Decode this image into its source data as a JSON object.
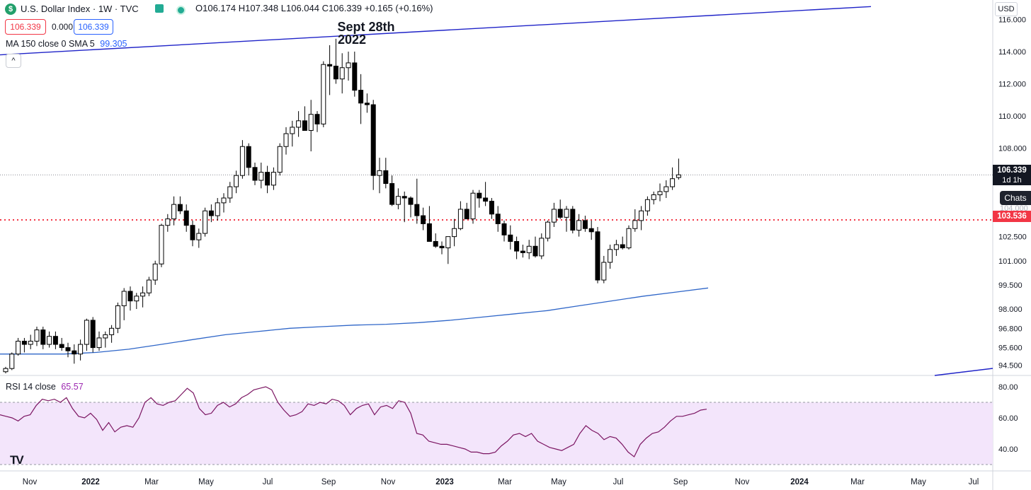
{
  "header": {
    "symbol_title": "U.S. Dollar Index · 1W · TVC",
    "ohlc": {
      "open": "O106.174",
      "high": "H107.348",
      "low": "L106.044",
      "close": "C106.339",
      "change": "+0.165 (+0.16%)"
    },
    "bid": "106.339",
    "spread": "0.000",
    "ask": "106.339",
    "ma_label": "MA 150 close 0 SMA 5",
    "ma_value": "99.305",
    "currency": "USD",
    "logo_glyph": "$",
    "collapse_glyph": "^"
  },
  "annotation": {
    "line1": "Sept 28th",
    "line2": "2022"
  },
  "price_tags": {
    "last": "106.339",
    "countdown": "1d 1h",
    "horizontal_level": "103.536",
    "chats": "Chats",
    "obscured_axis_label": "104.000"
  },
  "rsi": {
    "label": "RSI 14 close",
    "value": "65.57"
  },
  "colors": {
    "rsi_value": "#9c27b0",
    "ma_value": "#2962ff",
    "bid_box": "#f23645",
    "ask_box": "#2962ff",
    "up_body": "#ffffff",
    "down_body": "#000000",
    "trendline": "#1f23c8",
    "ma_line": "#2f66c8",
    "level_line": "#f23645",
    "rsi_line": "#7b1562",
    "rsi_band": "#f3e5fb"
  },
  "logo": "TV",
  "chart_data": {
    "type": "candlestick",
    "timeframe": "1W",
    "price_axis": {
      "min": 94.0,
      "max": 116.8,
      "ticks": [
        "116.000",
        "114.000",
        "112.000",
        "110.000",
        "108.000",
        "104.000",
        "102.500",
        "101.000",
        "99.500",
        "98.000",
        "96.800",
        "95.600",
        "94.500"
      ]
    },
    "x_axis": {
      "labels": [
        "Nov",
        "2022",
        "Mar",
        "May",
        "Jul",
        "Sep",
        "Nov",
        "2023",
        "Mar",
        "May",
        "Jul",
        "Sep",
        "Nov",
        "2024",
        "Mar",
        "May",
        "Jul"
      ],
      "bold": [
        "2022",
        "2023",
        "2024"
      ]
    },
    "candles": [
      [
        94.1,
        94.4,
        94.0,
        94.3
      ],
      [
        94.3,
        95.3,
        94.2,
        95.2
      ],
      [
        95.2,
        96.2,
        95.1,
        96.0
      ],
      [
        96.0,
        96.2,
        95.3,
        95.8
      ],
      [
        95.8,
        96.4,
        95.5,
        96.0
      ],
      [
        96.0,
        96.9,
        95.7,
        96.7
      ],
      [
        96.7,
        96.9,
        95.5,
        95.8
      ],
      [
        95.8,
        96.6,
        95.6,
        96.3
      ],
      [
        96.3,
        96.6,
        95.5,
        95.8
      ],
      [
        95.8,
        96.2,
        95.4,
        95.6
      ],
      [
        95.6,
        95.9,
        95.0,
        95.4
      ],
      [
        95.4,
        95.8,
        94.6,
        95.2
      ],
      [
        95.2,
        96.1,
        94.8,
        95.8
      ],
      [
        95.8,
        97.4,
        95.4,
        97.3
      ],
      [
        97.3,
        97.5,
        95.3,
        95.6
      ],
      [
        95.6,
        96.6,
        95.4,
        96.2
      ],
      [
        96.2,
        96.6,
        95.6,
        96.4
      ],
      [
        96.4,
        97.0,
        95.9,
        96.8
      ],
      [
        96.8,
        98.4,
        96.5,
        98.2
      ],
      [
        98.2,
        99.3,
        97.3,
        99.1
      ],
      [
        99.1,
        99.4,
        97.9,
        98.5
      ],
      [
        98.5,
        99.0,
        98.0,
        98.8
      ],
      [
        98.8,
        99.4,
        98.1,
        99.0
      ],
      [
        99.0,
        100.0,
        98.8,
        99.8
      ],
      [
        99.8,
        101.0,
        99.5,
        100.8
      ],
      [
        100.8,
        103.3,
        100.6,
        103.2
      ],
      [
        103.2,
        103.9,
        102.8,
        103.6
      ],
      [
        103.6,
        105.0,
        103.2,
        104.5
      ],
      [
        104.5,
        105.0,
        103.9,
        104.1
      ],
      [
        104.1,
        104.5,
        102.8,
        103.2
      ],
      [
        103.2,
        103.5,
        101.9,
        102.3
      ],
      [
        102.3,
        103.0,
        101.8,
        102.7
      ],
      [
        102.7,
        104.3,
        102.5,
        104.1
      ],
      [
        104.1,
        104.5,
        103.4,
        103.8
      ],
      [
        103.8,
        104.9,
        103.5,
        104.6
      ],
      [
        104.6,
        105.2,
        104.0,
        104.9
      ],
      [
        104.9,
        105.9,
        104.6,
        105.6
      ],
      [
        105.6,
        106.6,
        105.2,
        106.3
      ],
      [
        106.3,
        108.5,
        106.1,
        108.1
      ],
      [
        108.1,
        108.3,
        106.3,
        106.8
      ],
      [
        106.8,
        107.1,
        105.7,
        106.0
      ],
      [
        106.0,
        107.1,
        105.5,
        106.5
      ],
      [
        106.5,
        106.9,
        105.2,
        105.7
      ],
      [
        105.7,
        106.8,
        105.4,
        106.5
      ],
      [
        106.5,
        108.3,
        106.3,
        108.1
      ],
      [
        108.1,
        109.3,
        107.6,
        108.9
      ],
      [
        108.9,
        109.7,
        108.1,
        109.3
      ],
      [
        109.3,
        110.3,
        108.7,
        109.7
      ],
      [
        109.7,
        110.6,
        109.3,
        109.1
      ],
      [
        109.1,
        111.0,
        107.8,
        110.1
      ],
      [
        110.1,
        110.3,
        109.0,
        109.5
      ],
      [
        109.5,
        113.4,
        109.3,
        113.2
      ],
      [
        113.2,
        114.4,
        111.3,
        113.1
      ],
      [
        113.1,
        114.8,
        112.0,
        112.3
      ],
      [
        112.3,
        113.9,
        111.4,
        113.0
      ],
      [
        113.0,
        114.0,
        112.2,
        113.3
      ],
      [
        113.3,
        114.0,
        111.2,
        111.6
      ],
      [
        111.6,
        112.6,
        109.5,
        110.8
      ],
      [
        110.8,
        111.4,
        110.2,
        110.7
      ],
      [
        110.7,
        111.0,
        105.4,
        106.3
      ],
      [
        106.3,
        107.4,
        105.2,
        106.6
      ],
      [
        106.6,
        107.4,
        105.5,
        105.8
      ],
      [
        105.8,
        106.3,
        104.4,
        104.5
      ],
      [
        104.5,
        105.5,
        104.2,
        105.0
      ],
      [
        105.0,
        105.3,
        103.4,
        104.9
      ],
      [
        104.9,
        105.0,
        103.7,
        104.5
      ],
      [
        104.5,
        106.1,
        103.3,
        103.8
      ],
      [
        103.8,
        104.3,
        102.9,
        103.3
      ],
      [
        103.3,
        104.4,
        102.2,
        102.2
      ],
      [
        102.2,
        102.7,
        101.8,
        101.9
      ],
      [
        101.9,
        102.2,
        101.4,
        101.8
      ],
      [
        101.8,
        102.5,
        100.8,
        102.5
      ],
      [
        102.5,
        103.6,
        101.9,
        103.0
      ],
      [
        103.0,
        104.7,
        102.9,
        104.2
      ],
      [
        104.2,
        104.6,
        103.6,
        103.6
      ],
      [
        103.6,
        105.4,
        103.3,
        105.2
      ],
      [
        105.2,
        105.4,
        104.3,
        104.9
      ],
      [
        104.9,
        105.9,
        104.4,
        104.7
      ],
      [
        104.7,
        104.9,
        103.6,
        103.9
      ],
      [
        103.9,
        104.4,
        102.8,
        103.3
      ],
      [
        103.3,
        103.5,
        102.2,
        102.6
      ],
      [
        102.6,
        103.2,
        101.7,
        102.2
      ],
      [
        102.2,
        102.5,
        101.1,
        101.6
      ],
      [
        101.6,
        102.0,
        101.2,
        101.5
      ],
      [
        101.5,
        102.3,
        101.1,
        101.9
      ],
      [
        101.9,
        102.5,
        101.2,
        101.3
      ],
      [
        101.3,
        102.7,
        101.1,
        102.4
      ],
      [
        102.4,
        103.5,
        102.2,
        103.4
      ],
      [
        103.4,
        104.6,
        103.1,
        104.2
      ],
      [
        104.2,
        104.8,
        103.6,
        103.7
      ],
      [
        103.7,
        104.4,
        102.8,
        104.2
      ],
      [
        104.2,
        104.4,
        102.7,
        102.9
      ],
      [
        102.9,
        103.9,
        102.5,
        103.5
      ],
      [
        103.5,
        103.8,
        102.8,
        103.0
      ],
      [
        103.0,
        103.5,
        102.3,
        102.8
      ],
      [
        102.8,
        103.1,
        99.6,
        99.8
      ],
      [
        99.8,
        101.3,
        99.6,
        100.9
      ],
      [
        100.9,
        102.0,
        100.5,
        101.7
      ],
      [
        101.7,
        102.3,
        101.3,
        102.0
      ],
      [
        102.0,
        102.5,
        101.7,
        101.8
      ],
      [
        101.8,
        103.2,
        101.7,
        103.0
      ],
      [
        103.0,
        104.2,
        102.8,
        103.5
      ],
      [
        103.5,
        104.4,
        102.9,
        104.1
      ],
      [
        104.1,
        105.0,
        103.8,
        104.8
      ],
      [
        104.8,
        105.3,
        104.5,
        105.1
      ],
      [
        105.1,
        105.8,
        104.7,
        105.3
      ],
      [
        105.3,
        106.0,
        104.9,
        105.6
      ],
      [
        105.6,
        106.8,
        105.4,
        106.1
      ],
      [
        106.174,
        107.348,
        106.044,
        106.339
      ]
    ],
    "moving_average_150": [
      95.2,
      95.2,
      95.2,
      95.3,
      95.5,
      95.8,
      96.1,
      96.4,
      96.6,
      96.8,
      96.9,
      97.0,
      97.05,
      97.15,
      97.3,
      97.5,
      97.7,
      97.9,
      98.2,
      98.5,
      98.8,
      99.05,
      99.305
    ],
    "horizontal_level": 103.536,
    "trendline": {
      "start": [
        0,
        113.8
      ],
      "end": [
        1230,
        116.8
      ]
    },
    "rsi_series": {
      "name": "RSI 14 close",
      "axis_ticks": [
        "80.00",
        "60.00",
        "40.00"
      ],
      "band": [
        30,
        70
      ],
      "values": [
        62,
        61,
        60,
        58,
        61,
        62,
        68,
        72,
        71,
        72,
        70,
        73,
        66,
        61,
        60,
        63,
        59,
        52,
        57,
        51,
        54,
        55,
        54,
        60,
        70,
        73,
        69,
        68,
        70,
        71,
        75,
        79,
        76,
        66,
        62,
        63,
        68,
        70,
        67,
        69,
        73,
        75,
        78,
        79,
        80,
        78,
        70,
        65,
        61,
        62,
        64,
        69,
        68,
        70,
        69,
        72,
        71,
        68,
        62,
        66,
        68,
        69,
        62,
        67,
        68,
        66,
        71,
        70,
        63,
        50,
        49,
        45,
        44,
        43,
        43,
        42,
        41,
        40,
        38,
        38,
        37,
        37,
        38,
        42,
        45,
        49,
        50,
        48,
        50,
        45,
        43,
        41,
        40,
        39,
        41,
        43,
        50,
        55,
        52,
        50,
        46,
        48,
        47,
        43,
        38,
        35,
        43,
        47,
        50,
        51,
        54,
        58,
        61,
        61,
        62,
        63,
        65,
        65.57
      ]
    }
  }
}
